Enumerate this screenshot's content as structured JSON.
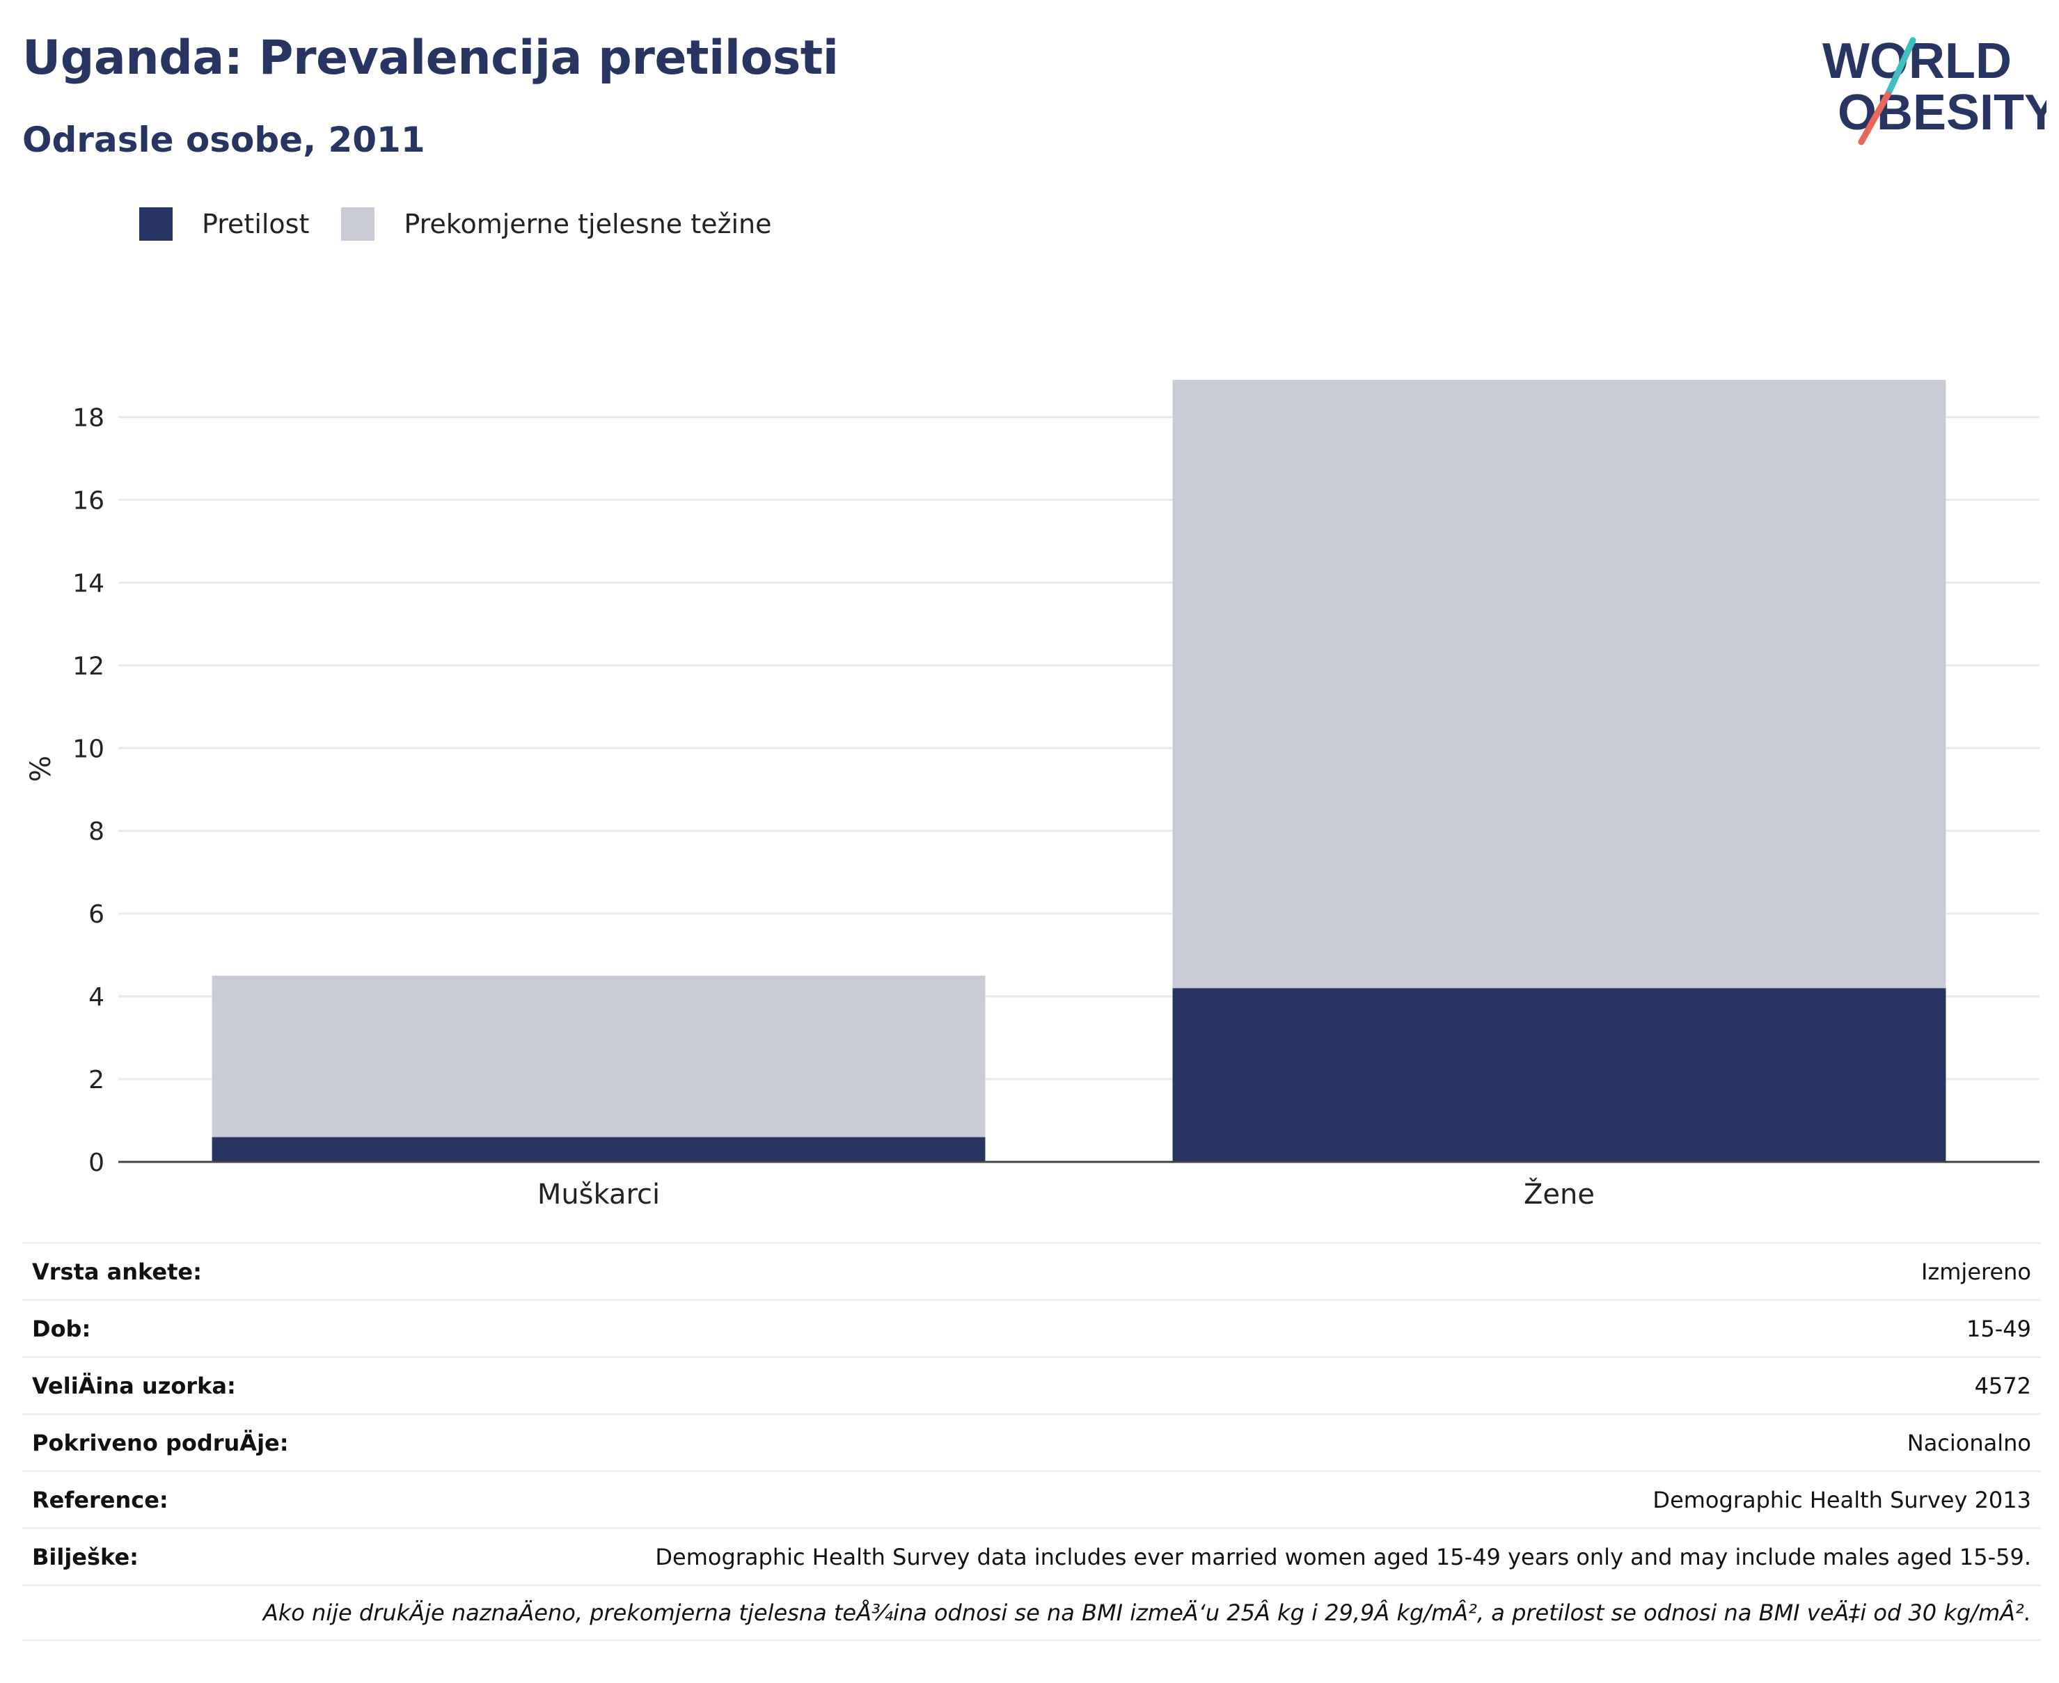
{
  "header": {
    "title": "Uganda: Prevalencija pretilosti",
    "subtitle": "Odrasle osobe, 2011"
  },
  "logo": {
    "line1": "WORLD",
    "line2": "OBESITY",
    "colors": {
      "text": "#283562",
      "slash_top": "#3fbfbf",
      "slash_bottom": "#e8695c"
    }
  },
  "chart_data": {
    "type": "bar",
    "stacked": true,
    "categories": [
      "Muškarci",
      "Žene"
    ],
    "series": [
      {
        "name": "Pretilost",
        "values": [
          0.6,
          4.2
        ],
        "color": "#283562"
      },
      {
        "name": "Prekomjerne tjelesne težine",
        "values": [
          3.9,
          14.7
        ],
        "color": "#c9cbd6"
      }
    ],
    "ylabel": "%",
    "xlabel": "",
    "ylim": [
      0,
      19
    ],
    "yticks": [
      0,
      2,
      4,
      6,
      8,
      10,
      12,
      14,
      16,
      18
    ],
    "grid": true,
    "legend_position": "top-left"
  },
  "meta": {
    "rows": [
      {
        "key": "Vrsta ankete:",
        "value": "Izmjereno"
      },
      {
        "key": "Dob:",
        "value": "15-49"
      },
      {
        "key": "VeliÄ\u001fina uzorka:",
        "value": "4572"
      },
      {
        "key": "Pokriveno podruÄ\u001fje:",
        "value": "Nacionalno"
      },
      {
        "key": "Reference:",
        "value": "Demographic Health Survey 2013"
      },
      {
        "key": "Bilješke:",
        "value": "Demographic Health Survey data includes ever married women aged 15-49 years only and may include males aged 15-59."
      }
    ],
    "note": "Ako nije drukÄ\u001fje naznaÄ\u001feno, prekomjerna tjelesna teÅ¾ina odnosi se na BMI izmeÄ‘u 25Â kg i 29,9Â kg/mÂ², a pretilost se odnosi na BMI veÄ‡i od 30 kg/mÂ²."
  }
}
